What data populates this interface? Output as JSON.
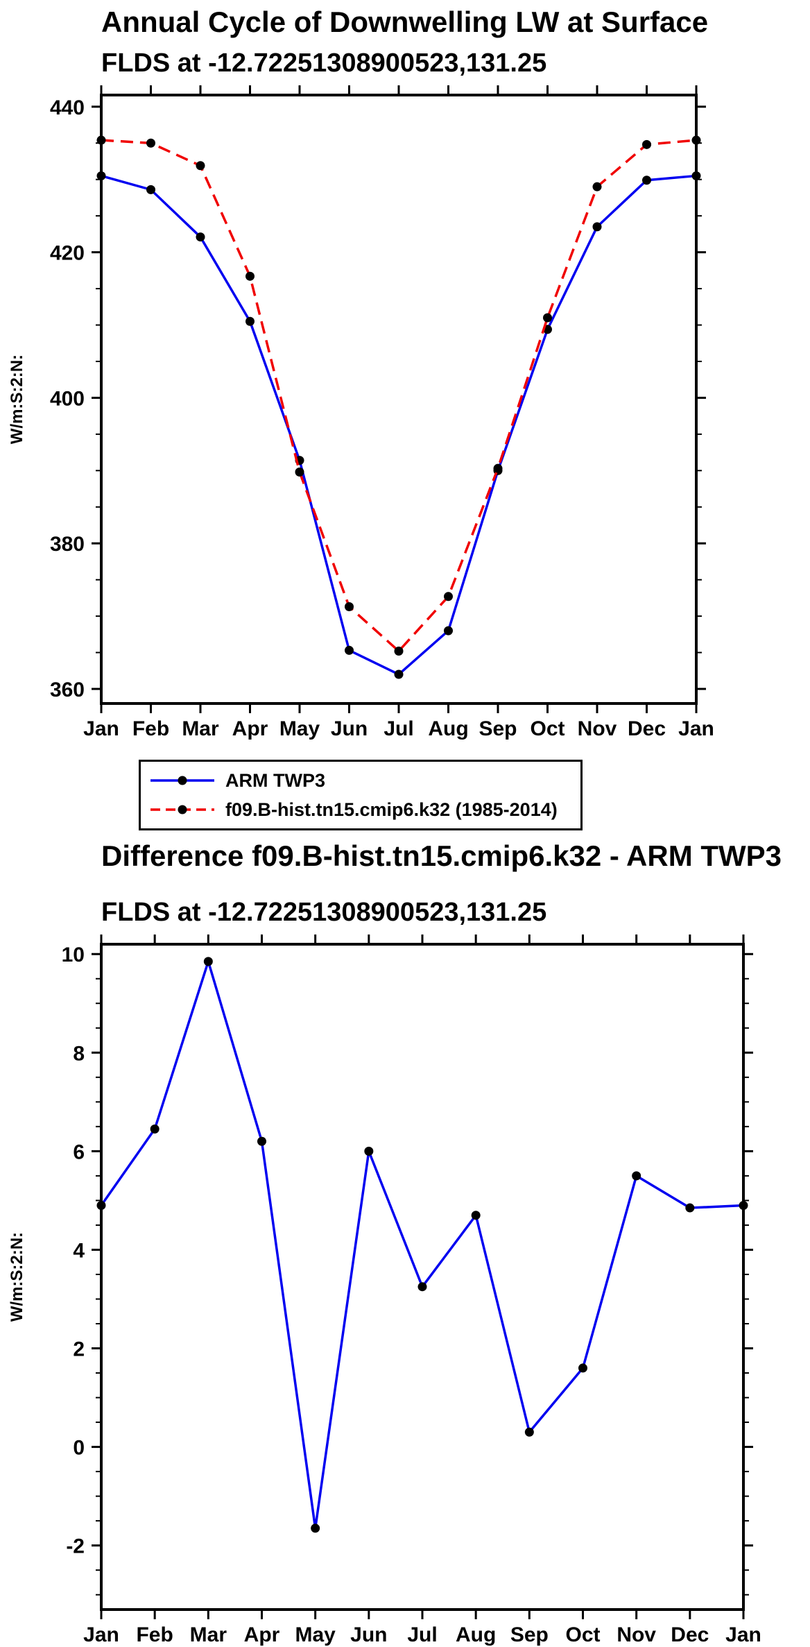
{
  "page": {
    "background": "#ffffff"
  },
  "chart_data": [
    {
      "type": "line",
      "title": "Annual Cycle of Downwelling LW at Surface",
      "subtitle": "FLDS at -12.72251308900523,131.25",
      "ylabel": "W/m:S:2:N:",
      "xlabel": "",
      "x_tick_labels": [
        "Jan",
        "Feb",
        "Mar",
        "Apr",
        "May",
        "Jun",
        "Jul",
        "Aug",
        "Sep",
        "Oct",
        "Nov",
        "Dec",
        "Jan"
      ],
      "ylim": [
        358,
        441.6
      ],
      "yticks": [
        360,
        380,
        400,
        420,
        440
      ],
      "minor_tick_step": 5,
      "grid": false,
      "legend_position": "below-chart",
      "marker_color": "#000000",
      "series": [
        {
          "name": "ARM TWP3",
          "color": "#0000f0",
          "line_style": "solid",
          "values": [
            430.5,
            428.6,
            422.1,
            410.5,
            391.4,
            365.3,
            362.0,
            368.0,
            390.0,
            409.4,
            423.5,
            429.9,
            430.5
          ]
        },
        {
          "name": "f09.B-hist.tn15.cmip6.k32 (1985-2014)",
          "color": "#f00000",
          "line_style": "dashed",
          "values": [
            435.4,
            435.0,
            431.9,
            416.7,
            389.8,
            371.3,
            365.2,
            372.7,
            390.3,
            411.0,
            429.0,
            434.8,
            435.4
          ]
        }
      ]
    },
    {
      "type": "line",
      "title": "Difference f09.B-hist.tn15.cmip6.k32 - ARM TWP3",
      "subtitle": "FLDS at -12.72251308900523,131.25",
      "ylabel": "W/m:S:2:N:",
      "xlabel": "",
      "x_tick_labels": [
        "Jan",
        "Feb",
        "Mar",
        "Apr",
        "May",
        "Jun",
        "Jul",
        "Aug",
        "Sep",
        "Oct",
        "Nov",
        "Dec",
        "Jan"
      ],
      "ylim": [
        -3.3,
        10.2
      ],
      "yticks": [
        -2,
        0,
        2,
        4,
        6,
        8,
        10
      ],
      "minor_tick_step": 0.5,
      "grid": false,
      "legend_position": "none",
      "marker_color": "#000000",
      "series": [
        {
          "name": "Difference",
          "color": "#0000f0",
          "line_style": "solid",
          "values": [
            4.9,
            6.45,
            9.85,
            6.2,
            -1.65,
            6.0,
            3.25,
            4.7,
            0.3,
            1.6,
            5.5,
            4.85,
            4.9
          ]
        }
      ]
    }
  ],
  "legend": {
    "entries": [
      {
        "label": "ARM TWP3",
        "color": "#0000f0",
        "line_style": "solid"
      },
      {
        "label": "f09.B-hist.tn15.cmip6.k32 (1985-2014)",
        "color": "#f00000",
        "line_style": "dashed"
      }
    ]
  }
}
